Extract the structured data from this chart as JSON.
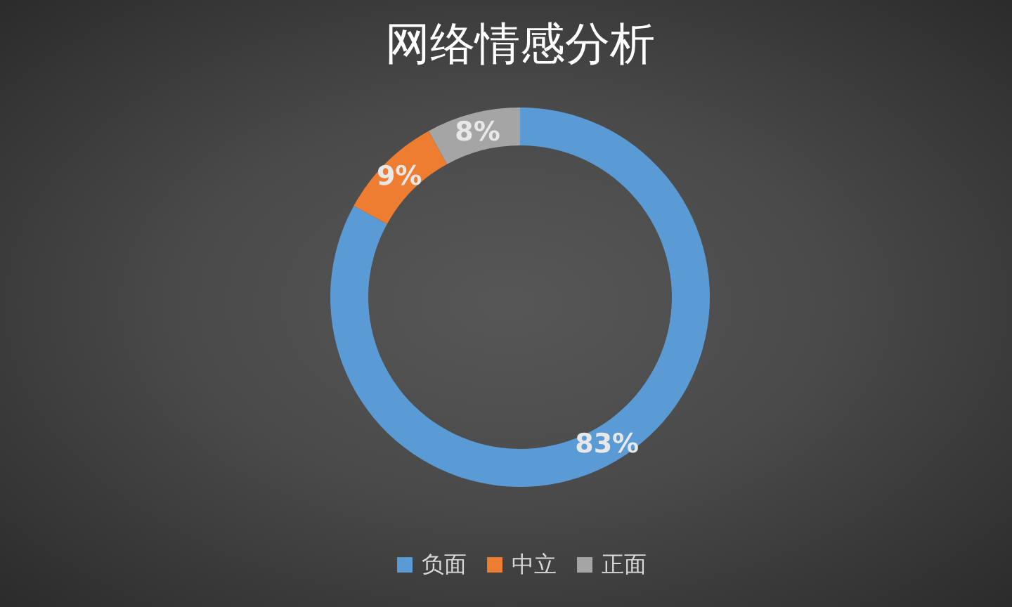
{
  "chart_data": {
    "type": "donut",
    "title": "网络情感分析",
    "categories": [
      "负面",
      "中立",
      "正面"
    ],
    "values": [
      83,
      9,
      8
    ],
    "colors": [
      "#5b9bd5",
      "#ed7d31",
      "#a5a5a5"
    ],
    "value_labels": [
      "83%",
      "9%",
      "8%"
    ],
    "legend": "bottom"
  }
}
